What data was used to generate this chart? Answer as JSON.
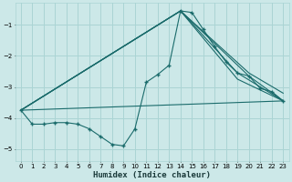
{
  "xlabel": "Humidex (Indice chaleur)",
  "bg_color": "#cce8e8",
  "grid_color": "#aad4d4",
  "line_color": "#1a6b6b",
  "xlim": [
    -0.5,
    23.5
  ],
  "ylim": [
    -5.4,
    -0.3
  ],
  "xticks": [
    0,
    1,
    2,
    3,
    4,
    5,
    6,
    7,
    8,
    9,
    10,
    11,
    12,
    13,
    14,
    15,
    16,
    17,
    18,
    19,
    20,
    21,
    22,
    23
  ],
  "yticks": [
    -5,
    -4,
    -3,
    -2,
    -1
  ],
  "series1_x": [
    0,
    1,
    2,
    3,
    4,
    5,
    6,
    7,
    8,
    9,
    10,
    11,
    12,
    13,
    14,
    15,
    16,
    17,
    18,
    19,
    20,
    21,
    22,
    23
  ],
  "series1_y": [
    -3.75,
    -4.2,
    -4.2,
    -4.15,
    -4.15,
    -4.2,
    -4.35,
    -4.6,
    -4.85,
    -4.9,
    -4.35,
    -2.85,
    -2.6,
    -2.3,
    -0.55,
    -0.6,
    -1.15,
    -1.7,
    -2.2,
    -2.55,
    -2.65,
    -3.05,
    -3.15,
    -3.45
  ],
  "line1_x": [
    0,
    23
  ],
  "line1_y": [
    -3.75,
    -3.45
  ],
  "line2_x": [
    0,
    14,
    19,
    23
  ],
  "line2_y": [
    -3.75,
    -0.55,
    -2.55,
    -3.45
  ],
  "line3_x": [
    0,
    14,
    19,
    23
  ],
  "line3_y": [
    -3.75,
    -0.55,
    -2.75,
    -3.45
  ],
  "line4_x": [
    0,
    14,
    20,
    23
  ],
  "line4_y": [
    -3.75,
    -0.55,
    -2.55,
    -3.2
  ],
  "line5_x": [
    0,
    14,
    20,
    23
  ],
  "line5_y": [
    -3.75,
    -0.55,
    -2.65,
    -3.45
  ]
}
